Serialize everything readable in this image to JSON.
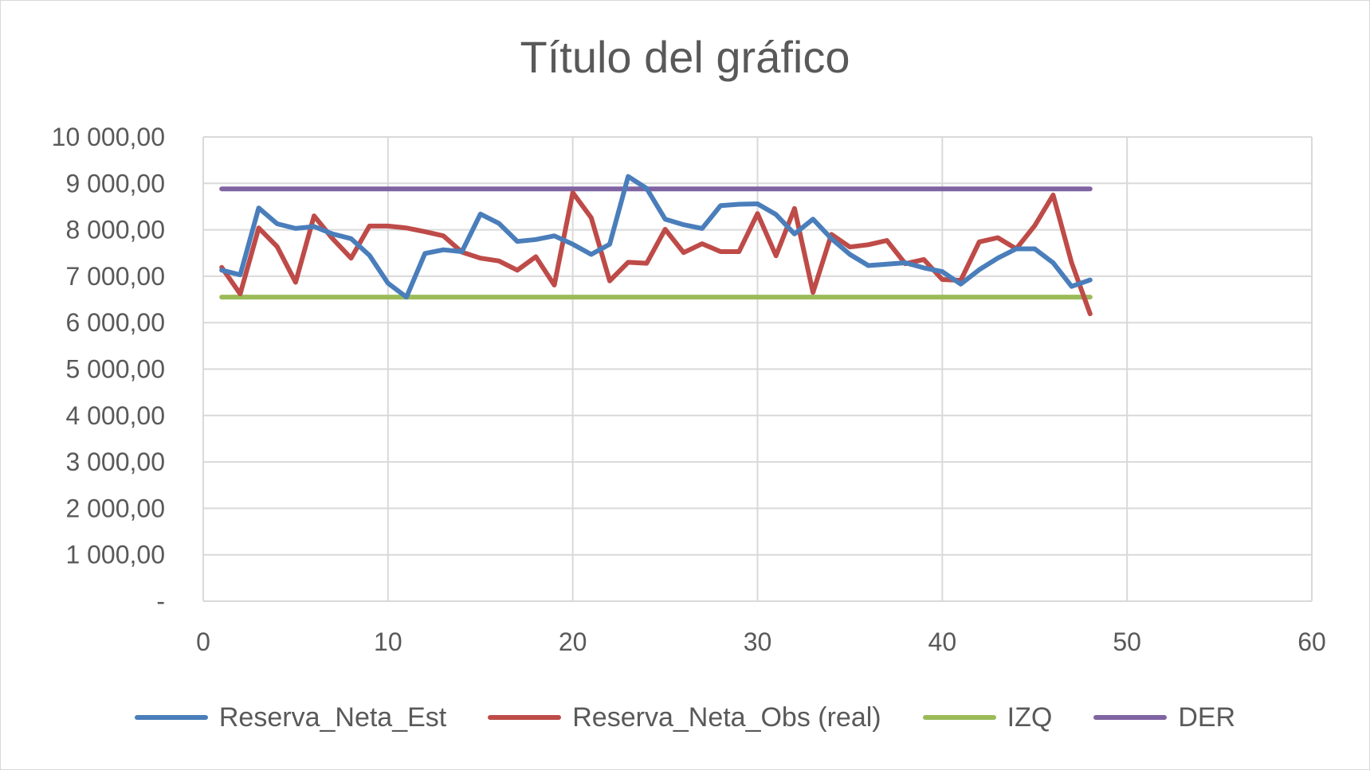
{
  "chart_data": {
    "type": "line",
    "title": "Título del gráfico",
    "xlabel": "",
    "ylabel": "",
    "xlim": [
      0,
      60
    ],
    "ylim": [
      0,
      10000
    ],
    "x_ticks": [
      0,
      10,
      20,
      30,
      40,
      50,
      60
    ],
    "x_tick_labels": [
      "0",
      "10",
      "20",
      "30",
      "40",
      "50",
      "60"
    ],
    "y_ticks": [
      0,
      1000,
      2000,
      3000,
      4000,
      5000,
      6000,
      7000,
      8000,
      9000,
      10000
    ],
    "y_tick_labels": [
      "-",
      "1 000,00",
      "2 000,00",
      "3 000,00",
      "4 000,00",
      "5 000,00",
      "6 000,00",
      "7 000,00",
      "8 000,00",
      "9 000,00",
      "10 000,00"
    ],
    "grid": true,
    "legend_position": "bottom",
    "x": [
      1,
      2,
      3,
      4,
      5,
      6,
      7,
      8,
      9,
      10,
      11,
      12,
      13,
      14,
      15,
      16,
      17,
      18,
      19,
      20,
      21,
      22,
      23,
      24,
      25,
      26,
      27,
      28,
      29,
      30,
      31,
      32,
      33,
      34,
      35,
      36,
      37,
      38,
      39,
      40,
      41,
      42,
      43,
      44,
      45,
      46,
      47,
      48
    ],
    "series": [
      {
        "name": "Reserva_Neta_Est",
        "color": "#4a7ebb",
        "values": [
          7130,
          7030,
          8470,
          8130,
          8030,
          8070,
          7910,
          7810,
          7450,
          6850,
          6550,
          7490,
          7570,
          7530,
          8340,
          8140,
          7750,
          7790,
          7870,
          7690,
          7470,
          7690,
          9150,
          8890,
          8230,
          8110,
          8030,
          8520,
          8550,
          8560,
          8330,
          7910,
          8230,
          7810,
          7470,
          7230,
          7260,
          7290,
          7180,
          7100,
          6830,
          7140,
          7390,
          7590,
          7590,
          7290,
          6780,
          6920
        ]
      },
      {
        "name": "Reserva_Neta_Obs (real)",
        "color": "#be4b48",
        "values": [
          7190,
          6620,
          8040,
          7640,
          6870,
          8300,
          7810,
          7390,
          8080,
          8080,
          8040,
          7960,
          7870,
          7520,
          7390,
          7330,
          7130,
          7420,
          6810,
          8800,
          8260,
          6900,
          7300,
          7280,
          8010,
          7510,
          7700,
          7530,
          7530,
          8350,
          7440,
          8460,
          6650,
          7900,
          7630,
          7680,
          7770,
          7270,
          7360,
          6930,
          6910,
          7740,
          7830,
          7590,
          8090,
          8750,
          7290,
          6190
        ]
      },
      {
        "name": "IZQ",
        "color": "#9bbb59",
        "values": [
          6550,
          6550,
          6550,
          6550,
          6550,
          6550,
          6550,
          6550,
          6550,
          6550,
          6550,
          6550,
          6550,
          6550,
          6550,
          6550,
          6550,
          6550,
          6550,
          6550,
          6550,
          6550,
          6550,
          6550,
          6550,
          6550,
          6550,
          6550,
          6550,
          6550,
          6550,
          6550,
          6550,
          6550,
          6550,
          6550,
          6550,
          6550,
          6550,
          6550,
          6550,
          6550,
          6550,
          6550,
          6550,
          6550,
          6550,
          6550
        ]
      },
      {
        "name": "DER",
        "color": "#8064a2",
        "values": [
          8880,
          8880,
          8880,
          8880,
          8880,
          8880,
          8880,
          8880,
          8880,
          8880,
          8880,
          8880,
          8880,
          8880,
          8880,
          8880,
          8880,
          8880,
          8880,
          8880,
          8880,
          8880,
          8880,
          8880,
          8880,
          8880,
          8880,
          8880,
          8880,
          8880,
          8880,
          8880,
          8880,
          8880,
          8880,
          8880,
          8880,
          8880,
          8880,
          8880,
          8880,
          8880,
          8880,
          8880,
          8880,
          8880,
          8880,
          8880
        ]
      }
    ]
  }
}
